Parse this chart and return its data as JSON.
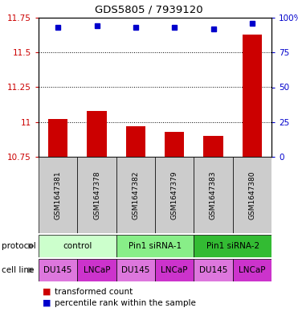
{
  "title": "GDS5805 / 7939120",
  "samples": [
    "GSM1647381",
    "GSM1647378",
    "GSM1647382",
    "GSM1647379",
    "GSM1647383",
    "GSM1647380"
  ],
  "red_values": [
    11.02,
    11.08,
    10.97,
    10.93,
    10.9,
    11.63
  ],
  "blue_percentiles": [
    93,
    94,
    93,
    93,
    92,
    96
  ],
  "ylim_left": [
    10.75,
    11.75
  ],
  "ylim_right": [
    0,
    100
  ],
  "yticks_left": [
    10.75,
    11.0,
    11.25,
    11.5,
    11.75
  ],
  "yticks_left_labels": [
    "10.75",
    "11",
    "11.25",
    "11.5",
    "11.75"
  ],
  "yticks_right": [
    0,
    25,
    50,
    75,
    100
  ],
  "yticks_right_labels": [
    "0",
    "25",
    "50",
    "75",
    "100%"
  ],
  "protocols": [
    {
      "label": "control",
      "span": [
        0,
        2
      ],
      "color": "#ccffcc"
    },
    {
      "label": "Pin1 siRNA-1",
      "span": [
        2,
        4
      ],
      "color": "#88ee88"
    },
    {
      "label": "Pin1 siRNA-2",
      "span": [
        4,
        6
      ],
      "color": "#33bb33"
    }
  ],
  "cell_colors": [
    "#dd77dd",
    "#cc33cc",
    "#dd77dd",
    "#cc33cc",
    "#dd77dd",
    "#cc33cc"
  ],
  "cell_labels": [
    "DU145",
    "LNCaP",
    "DU145",
    "LNCaP",
    "DU145",
    "LNCaP"
  ],
  "bar_color": "#cc0000",
  "dot_color": "#0000cc",
  "axis_left_color": "#cc0000",
  "axis_right_color": "#0000cc",
  "background_color": "#ffffff",
  "sample_bg_color": "#cccccc"
}
